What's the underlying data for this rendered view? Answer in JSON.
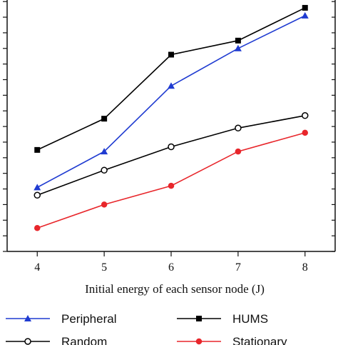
{
  "chart_data": {
    "type": "line",
    "title": "",
    "xlabel": "Initial energy of each sensor node (J)",
    "ylabel": "",
    "x": [
      4,
      5,
      6,
      7,
      8
    ],
    "xlim": [
      3.55,
      8.45
    ],
    "ylim": [
      0,
      16.1
    ],
    "x_ticks": [
      "4",
      "5",
      "6",
      "7",
      "8"
    ],
    "y_ticks": [
      0,
      1,
      2,
      3,
      4,
      5,
      6,
      7,
      8,
      9,
      10,
      11,
      12,
      13,
      14,
      15,
      16
    ],
    "y_tick_labels_visible": false,
    "grid": false,
    "legend_position": "bottom",
    "series": [
      {
        "name": "Peripheral",
        "values": [
          4.1,
          6.4,
          10.6,
          13.0,
          15.1
        ],
        "color": "#1f3bd1",
        "marker": "triangle-filled"
      },
      {
        "name": "HUMS",
        "values": [
          6.5,
          8.5,
          12.6,
          13.5,
          15.6
        ],
        "color": "#000000",
        "marker": "square-filled"
      },
      {
        "name": "Random",
        "values": [
          3.6,
          5.2,
          6.7,
          7.9,
          8.7
        ],
        "color": "#000000",
        "marker": "circle-open"
      },
      {
        "name": "Stationary",
        "values": [
          1.5,
          3.0,
          4.2,
          6.4,
          7.6
        ],
        "color": "#e8262b",
        "marker": "circle-filled"
      }
    ]
  }
}
